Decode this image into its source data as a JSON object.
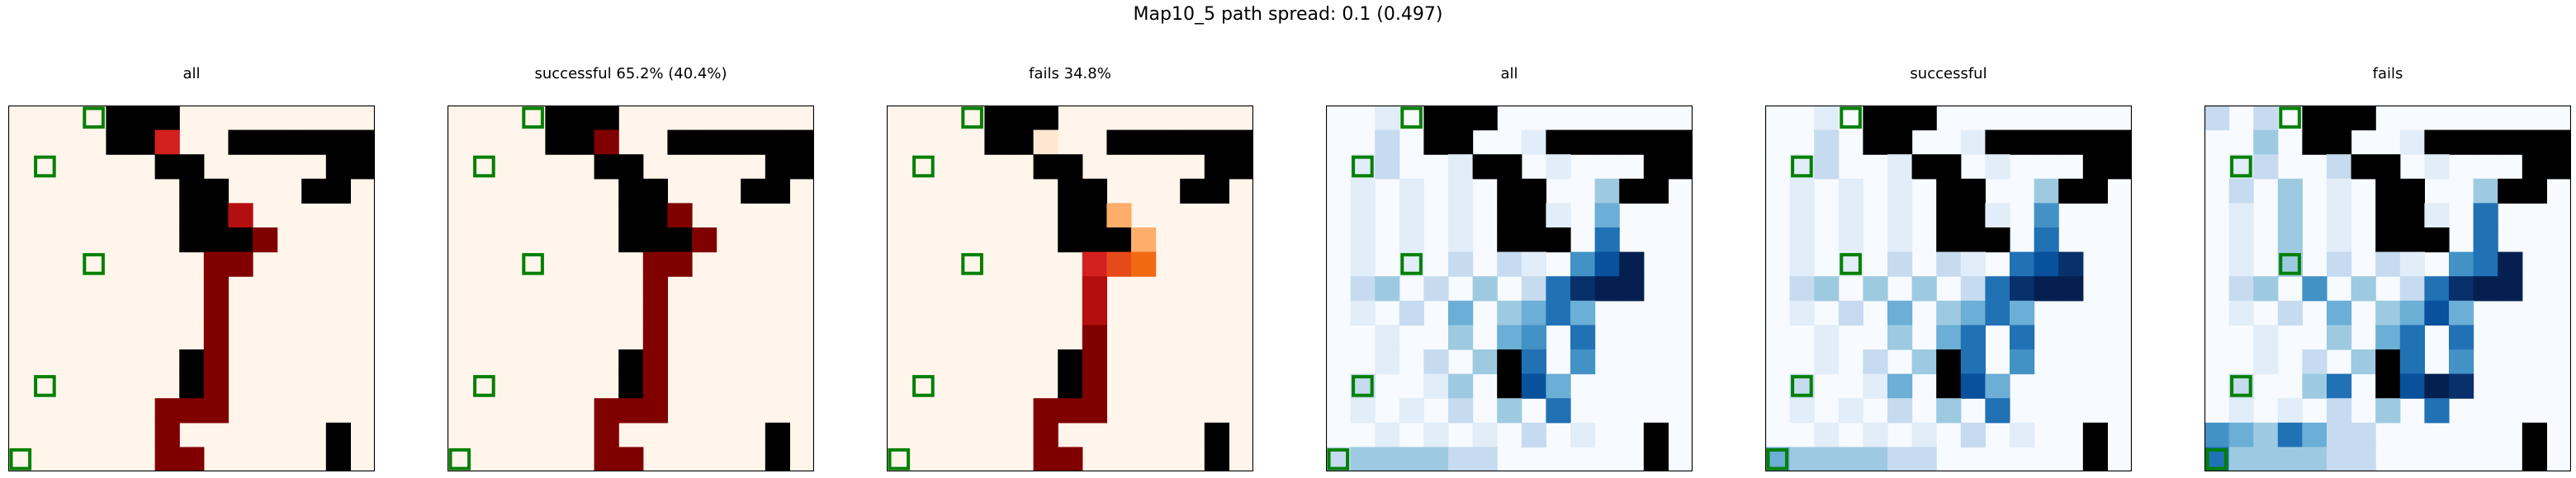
{
  "figure": {
    "title": "Map10_5 path spread: 0.1 (0.497)"
  },
  "chart_data": [
    {
      "type": "heatmap",
      "title": "all",
      "colormap": "Reds",
      "grid": false,
      "size": [
        15,
        15
      ],
      "obstacles": "walls",
      "targets": "targets",
      "values": "reds_all"
    },
    {
      "type": "heatmap",
      "title": "successful 65.2% (40.4%)",
      "colormap": "Reds",
      "grid": false,
      "size": [
        15,
        15
      ],
      "obstacles": "walls",
      "targets": "targets",
      "values": "reds_success"
    },
    {
      "type": "heatmap",
      "title": "fails 34.8%",
      "colormap": "Reds",
      "grid": false,
      "size": [
        15,
        15
      ],
      "obstacles": "walls",
      "targets": "targets",
      "values": "reds_fail"
    },
    {
      "type": "heatmap",
      "title": "all",
      "colormap": "Blues",
      "grid": false,
      "size": [
        15,
        15
      ],
      "obstacles": "walls",
      "targets": "targets",
      "values": "blues_all"
    },
    {
      "type": "heatmap",
      "title": "successful",
      "colormap": "Blues",
      "grid": false,
      "size": [
        15,
        15
      ],
      "obstacles": "walls",
      "targets": "targets",
      "values": "blues_success"
    },
    {
      "type": "heatmap",
      "title": "fails",
      "colormap": "Blues",
      "grid": false,
      "size": [
        15,
        15
      ],
      "obstacles": "walls",
      "targets": "targets",
      "values": "blues_fail"
    }
  ],
  "maps": {
    "walls": [
      "....###........",
      "....##...######",
      "......##.....##",
      ".......##...##.",
      ".......##......",
      ".......###.....",
      "...............",
      "...............",
      "...............",
      "...............",
      ".......#.......",
      ".......#.......",
      "...............",
      ".............#.",
      ".............#."
    ],
    "targets": [
      [
        3,
        0
      ],
      [
        1,
        2
      ],
      [
        3,
        6
      ],
      [
        1,
        11
      ],
      [
        0,
        14
      ]
    ],
    "reds_all": [
      "......6........",
      "......7........",
      "......78.......",
      "........8......",
      ".........8.....",
      "..........9....",
      "........99.....",
      "........9......",
      "........9......",
      "........9......",
      "........9......",
      "........9......",
      "......999......",
      "......9........",
      "......99......."
    ],
    "reds_success": [
      "......9........",
      "......9........",
      "......99.......",
      "........9......",
      ".........9.....",
      "..........9....",
      "........99.....",
      "........9......",
      "........9......",
      "........9......",
      "........9......",
      "........9......",
      "......999......",
      "......9........",
      "......99......."
    ],
    "reds_fail": [
      "......1........",
      "......1........",
      "......12.......",
      "........2......",
      ".........3.....",
      ".........33....",
      "........765....",
      "........8......",
      "........8......",
      "........9......",
      "........9......",
      "........9......",
      "......999......",
      "......9........",
      "......99......."
    ],
    "blues_all": [
      "..1.2..........",
      "..2.1...1......",
      ".12..112.1.....",
      ".1.1.1.....3...",
      ".1.1.1.1.1.4...",
      ".1.1.1.1...6...",
      ".1.1.2.21.579..",
      ".23.2.3.26899..",
      ".1.2.4.3464....",
      "..1..3.45.6....",
      "..1.2.3.6.5....",
      ".2..13..74.....",
      ".1.1.2.3.6.....",
      "..1.1.1.2.1....",
      "2333322........"
    ],
    "blues_success": [
      "..1.4..........",
      "..2.1...1......",
      ".12..112.1.....",
      ".1.1.1.....3...",
      ".1.1.1.1.1.5...",
      ".1.1.1.1...6...",
      ".1.1.2.21.678..",
      ".23.3.3.26899..",
      ".1.2.4.3464....",
      "..1..3.46.6....",
      "..1.2.3.6.5....",
      ".2..14..74.....",
      ".1.1.2.3.6.....",
      "..1.1.1.2.1....",
      "4333322........"
    ],
    "blues_fail": [
      "2.2.4..........",
      "..3.1...1......",
      ".12..212.1.....",
      ".2.3.1.....3...",
      ".1.3.1.1.1.6...",
      ".1.3.1.1.3.6...",
      ".1.3.2.21.569..",
      ".23.5.3.26899..",
      ".1.2.4.3474....",
      "..1..3.46.6....",
      "..1.2.3.6.5....",
      ".2..36..798....",
      ".1.1.2.3.6.....",
      "5436422........",
      "6333322........"
    ]
  },
  "colors": {
    "reds": [
      "#fff5eb",
      "#fee8d2",
      "#fdd0a2",
      "#fdae6b",
      "#fd8d3c",
      "#f16913",
      "#e64a1a",
      "#d42020",
      "#b40e0e",
      "#800000"
    ],
    "blues": [
      "#f7fbff",
      "#e1edf8",
      "#c6dbef",
      "#9ecae1",
      "#6baed6",
      "#4292c6",
      "#2171b5",
      "#08519c",
      "#08306b",
      "#052050"
    ],
    "wall": "#000000",
    "target": "#008000"
  }
}
